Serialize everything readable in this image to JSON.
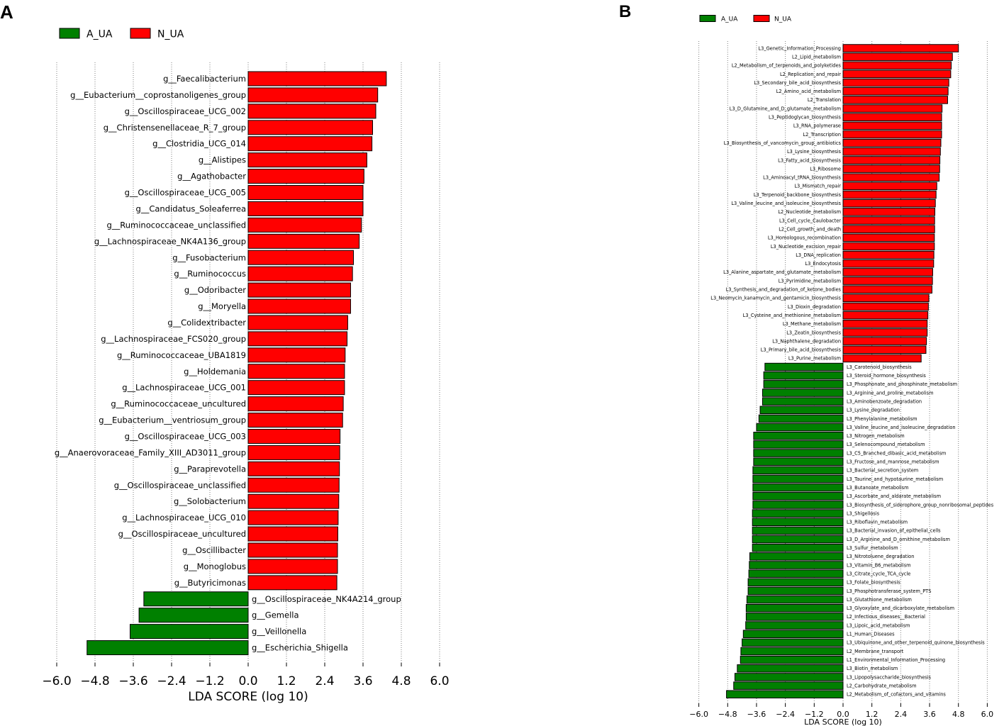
{
  "panel_labels": {
    "a": "A",
    "b": "B"
  },
  "colors": {
    "positive": "#ff0000",
    "negative": "#008000",
    "grid": "#7f7f7f"
  },
  "chart_data": [
    {
      "id": "A",
      "type": "bar",
      "orientation": "horizontal",
      "xlabel": "LDA SCORE (log 10)",
      "xlim": [
        -6.0,
        6.0
      ],
      "xticks": [
        -6.0,
        -4.8,
        -3.6,
        -2.4,
        -1.2,
        0.0,
        1.2,
        2.4,
        3.6,
        4.8,
        6.0
      ],
      "xtick_labels": [
        "−6.0",
        "−4.8",
        "−3.6",
        "−2.4",
        "−1.2",
        "0.0",
        "1.2",
        "2.4",
        "3.6",
        "4.8",
        "6.0"
      ],
      "grid": "vertical dotted",
      "legend": {
        "placement": "top-left",
        "entries": [
          {
            "name": "A_UA",
            "color": "#008000"
          },
          {
            "name": "N_UA",
            "color": "#ff0000"
          }
        ]
      },
      "categories": [
        "g__Faecalibacterium",
        "g__Eubacterium__coprostanoligenes_group",
        "g__Oscillospiraceae_UCG_002",
        "g__Christensenellaceae_R_7_group",
        "g__Clostridia_UCG_014",
        "g__Alistipes",
        "g__Agathobacter",
        "g__Oscillospiraceae_UCG_005",
        "g__Candidatus_Soleaferrea",
        "g__Ruminococcaceae_unclassified",
        "g__Lachnospiraceae_NK4A136_group",
        "g__Fusobacterium",
        "g__Ruminococcus",
        "g__Odoribacter",
        "g__Moryella",
        "g__Colidextribacter",
        "g__Lachnospiraceae_FCS020_group",
        "g__Ruminococcaceae_UBA1819",
        "g__Holdemania",
        "g__Lachnospiraceae_UCG_001",
        "g__Ruminococcaceae_uncultured",
        "g__Eubacterium__ventriosum_group",
        "g__Oscillospiraceae_UCG_003",
        "g__Anaerovoraceae_Family_XIII_AD3011_group",
        "g__Paraprevotella",
        "g__Oscillospiraceae_unclassified",
        "g__Solobacterium",
        "g__Lachnospiraceae_UCG_010",
        "g__Oscillospiraceae_uncultured",
        "g__Oscillibacter",
        "g__Monoglobus",
        "g__Butyricimonas",
        "g__Oscillospiraceae_NK4A214_group",
        "g__Gemella",
        "g__Veillonella",
        "g__Escherichia_Shigella"
      ],
      "values": [
        4.33,
        4.06,
        4.0,
        3.9,
        3.88,
        3.72,
        3.63,
        3.6,
        3.6,
        3.55,
        3.48,
        3.3,
        3.27,
        3.21,
        3.21,
        3.12,
        3.1,
        3.04,
        3.02,
        3.02,
        2.98,
        2.96,
        2.88,
        2.87,
        2.86,
        2.85,
        2.84,
        2.82,
        2.81,
        2.8,
        2.8,
        2.78,
        -3.27,
        -3.42,
        -3.7,
        -5.05
      ]
    },
    {
      "id": "B",
      "type": "bar",
      "orientation": "horizontal",
      "xlabel": "LDA SCORE (log 10)",
      "xlim": [
        -6.0,
        6.0
      ],
      "xticks": [
        -6.0,
        -4.8,
        -3.6,
        -2.4,
        -1.2,
        0.0,
        1.2,
        2.4,
        3.6,
        4.8,
        6.0
      ],
      "xtick_labels": [
        "−6.0",
        "−4.8",
        "−3.6",
        "−2.4",
        "−1.2",
        "0.0",
        "1.2",
        "2.4",
        "3.6",
        "4.8",
        "6.0"
      ],
      "grid": "vertical dotted",
      "legend": {
        "placement": "top-left",
        "entries": [
          {
            "name": "A_UA",
            "color": "#008000"
          },
          {
            "name": "N_UA",
            "color": "#ff0000"
          }
        ]
      },
      "categories": [
        "L3_Genetic_Information_Processing",
        "L2_Lipid_metabolism",
        "L2_Metabolism_of_terpenoids_and_polyketides",
        "L2_Replication_and_repair",
        "L3_Secondary_bile_acid_biosynthesis",
        "L2_Amino_acid_metabolism",
        "L2_Translation",
        "L3_D_Glutamine_and_D_glutamate_metabolism",
        "L3_Peptidoglycan_biosynthesis",
        "L3_RNA_polymerase",
        "L2_Transcription",
        "L3_Biosynthesis_of_vancomycin_group_antibiotics",
        "L3_Lysine_biosynthesis",
        "L3_Fatty_acid_biosynthesis",
        "L3_Ribosome",
        "L3_Aminoacyl_tRNA_biosynthesis",
        "L3_Mismatch_repair",
        "L3_Terpenoid_backbone_biosynthesis",
        "L3_Valine_leucine_and_isoleucine_biosynthesis",
        "L2_Nucleotide_metabolism",
        "L3_Cell_cycle_Caulobacter",
        "L2_Cell_growth_and_death",
        "L3_Homologous_recombination",
        "L3_Nucleotide_excision_repair",
        "L3_DNA_replication",
        "L3_Endocytosis",
        "L3_Alanine_aspartate_and_glutamate_metabolism",
        "L3_Pyrimidine_metabolism",
        "L3_Synthesis_and_degradation_of_ketone_bodies",
        "L3_Neomycin_kanamycin_and_gentamicin_biosynthesis",
        "L3_Dioxin_degradation",
        "L3_Cysteine_and_methionine_metabolism",
        "L3_Methane_metabolism",
        "L3_Zeatin_biosynthesis",
        "L3_Naphthalene_degradation",
        "L3_Primary_bile_acid_biosynthesis",
        "L3_Purine_metabolism",
        "L3_Carotenoid_biosynthesis",
        "L3_Steroid_hormone_biosynthesis",
        "L3_Phosphonate_and_phosphinate_metabolism",
        "L3_Arginine_and_proline_metabolism",
        "L3_Aminobenzoate_degradation",
        "L3_Lysine_degradation",
        "L3_Phenylalanine_metabolism",
        "L3_Valine_leucine_and_isoleucine_degradation",
        "L3_Nitrogen_metabolism",
        "L3_Selenocompound_metabolism",
        "L3_C5_Branched_dibasic_acid_metabolism",
        "L3_Fructose_and_mannose_metabolism",
        "L3_Bacterial_secretion_system",
        "L3_Taurine_and_hypotaurine_metabolism",
        "L3_Butanoate_metabolism",
        "L3_Ascorbate_and_aldarate_metabolism",
        "L3_Biosynthesis_of_siderophore_group_nonribosomal_peptides",
        "L3_Shigellosis",
        "L3_Riboflavin_metabolism",
        "L3_Bacterial_invasion_of_epithelial_cells",
        "L3_D_Arginine_and_D_ornithine_metabolism",
        "L3_Sulfur_metabolism",
        "L3_Nitrotoluene_degradation",
        "L3_Vitamin_B6_metabolism",
        "L3_Citrate_cycle_TCA_cycle",
        "L3_Folate_biosynthesis",
        "L3_Phosphotransferase_system_PTS",
        "L3_Glutathione_metabolism",
        "L3_Glyoxylate_and_dicarboxylate_metabolism",
        "L2_Infectious_diseases__Bacterial",
        "L3_Lipoic_acid_metabolism",
        "L1_Human_Diseases",
        "L3_Ubiquinone_and_other_terpenoid_quinone_biosynthesis",
        "L2_Membrane_transport",
        "L1_Environmental_Information_Processing",
        "L3_Biotin_metabolism",
        "L3_Lipopolysaccharide_biosynthesis",
        "L2_Carbohydrate_metabolism",
        "L2_Metabolism_of_cofactors_and_vitamins"
      ],
      "values": [
        4.8,
        4.55,
        4.5,
        4.48,
        4.4,
        4.37,
        4.35,
        4.12,
        4.1,
        4.1,
        4.1,
        4.07,
        4.05,
        4.03,
        4.02,
        4.0,
        3.9,
        3.87,
        3.84,
        3.82,
        3.81,
        3.81,
        3.8,
        3.8,
        3.78,
        3.77,
        3.73,
        3.72,
        3.7,
        3.57,
        3.55,
        3.53,
        3.5,
        3.5,
        3.47,
        3.45,
        3.25,
        -3.25,
        -3.3,
        -3.3,
        -3.35,
        -3.35,
        -3.45,
        -3.5,
        -3.6,
        -3.72,
        -3.72,
        -3.72,
        -3.72,
        -3.75,
        -3.75,
        -3.75,
        -3.75,
        -3.75,
        -3.77,
        -3.77,
        -3.77,
        -3.77,
        -3.77,
        -3.88,
        -3.9,
        -3.92,
        -3.95,
        -3.95,
        -4.0,
        -4.03,
        -4.03,
        -4.05,
        -4.15,
        -4.2,
        -4.25,
        -4.27,
        -4.4,
        -4.5,
        -4.55,
        -4.85
      ]
    }
  ]
}
